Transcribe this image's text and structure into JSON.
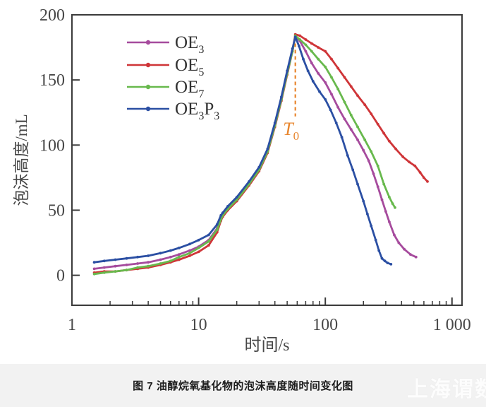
{
  "figure": {
    "caption": "图 7  油醇烷氧基化物的泡沫高度随时间变化图",
    "watermark": "上海谓数"
  },
  "chart_data": {
    "type": "line",
    "x_scale": "log",
    "title": "",
    "xlabel": "时间/s",
    "ylabel": "泡沫高度/mL",
    "xlim": [
      1,
      1200
    ],
    "ylim": [
      -23,
      200
    ],
    "x_ticks": [
      1,
      10,
      100,
      1000
    ],
    "x_tick_labels": [
      "1",
      "10",
      "100",
      "1 000"
    ],
    "y_ticks": [
      0,
      50,
      100,
      150,
      200
    ],
    "grid": false,
    "legend_position": "upper-left-inside",
    "axis_color": "#3b3b3b",
    "tick_label_color": "#474747",
    "annotation": {
      "label": "T",
      "sub": "0",
      "x": 58,
      "line_y_top": 178,
      "line_y_bottom": 122,
      "color": "#e8862e",
      "style": "dashed-vertical"
    },
    "series": [
      {
        "name": "OE3",
        "label_parts": [
          [
            "OE",
            false
          ],
          [
            "3",
            true
          ]
        ],
        "color": "#a64b9d",
        "points": [
          [
            1.5,
            5
          ],
          [
            1.8,
            6
          ],
          [
            2.2,
            7
          ],
          [
            2.7,
            8
          ],
          [
            3.3,
            9
          ],
          [
            4,
            10
          ],
          [
            5,
            12
          ],
          [
            6,
            14
          ],
          [
            7,
            16
          ],
          [
            8.5,
            19
          ],
          [
            10,
            22
          ],
          [
            12,
            27
          ],
          [
            14,
            36
          ],
          [
            15,
            44
          ],
          [
            15.5,
            46
          ],
          [
            17,
            51
          ],
          [
            20,
            58
          ],
          [
            25,
            70
          ],
          [
            30,
            81
          ],
          [
            35,
            95
          ],
          [
            40,
            115
          ],
          [
            45,
            135
          ],
          [
            50,
            155
          ],
          [
            55,
            172
          ],
          [
            58,
            184
          ],
          [
            63,
            180
          ],
          [
            70,
            172
          ],
          [
            78,
            163
          ],
          [
            88,
            155
          ],
          [
            100,
            148
          ],
          [
            112,
            139
          ],
          [
            126,
            129
          ],
          [
            142,
            120
          ],
          [
            160,
            112
          ],
          [
            180,
            104
          ],
          [
            200,
            96
          ],
          [
            220,
            88
          ],
          [
            240,
            78
          ],
          [
            260,
            68
          ],
          [
            280,
            58
          ],
          [
            300,
            49
          ],
          [
            320,
            41
          ],
          [
            350,
            31
          ],
          [
            380,
            25
          ],
          [
            420,
            20
          ],
          [
            470,
            16
          ],
          [
            520,
            14
          ]
        ]
      },
      {
        "name": "OE5",
        "label_parts": [
          [
            "OE",
            false
          ],
          [
            "5",
            true
          ]
        ],
        "color": "#cf3538",
        "points": [
          [
            1.5,
            2
          ],
          [
            1.8,
            3
          ],
          [
            2.2,
            3
          ],
          [
            2.7,
            4
          ],
          [
            3.3,
            5
          ],
          [
            4,
            6
          ],
          [
            5,
            8
          ],
          [
            6,
            10
          ],
          [
            7,
            12
          ],
          [
            8.5,
            15
          ],
          [
            10,
            18
          ],
          [
            12,
            23
          ],
          [
            14,
            33
          ],
          [
            15,
            42
          ],
          [
            15.5,
            45
          ],
          [
            17,
            50
          ],
          [
            20,
            57
          ],
          [
            25,
            69
          ],
          [
            30,
            80
          ],
          [
            35,
            94
          ],
          [
            40,
            114
          ],
          [
            45,
            134
          ],
          [
            50,
            154
          ],
          [
            55,
            172
          ],
          [
            58,
            185
          ],
          [
            63,
            184
          ],
          [
            70,
            181
          ],
          [
            78,
            178
          ],
          [
            88,
            175
          ],
          [
            100,
            172
          ],
          [
            112,
            166
          ],
          [
            126,
            159
          ],
          [
            142,
            152
          ],
          [
            160,
            145
          ],
          [
            180,
            138
          ],
          [
            205,
            131
          ],
          [
            230,
            124
          ],
          [
            260,
            116
          ],
          [
            290,
            109
          ],
          [
            320,
            103
          ],
          [
            360,
            97
          ],
          [
            410,
            91
          ],
          [
            460,
            87
          ],
          [
            510,
            84
          ],
          [
            560,
            79
          ],
          [
            600,
            75
          ],
          [
            640,
            72
          ]
        ]
      },
      {
        "name": "OE7",
        "label_parts": [
          [
            "OE",
            false
          ],
          [
            "7",
            true
          ]
        ],
        "color": "#68b94d",
        "points": [
          [
            1.5,
            1
          ],
          [
            1.8,
            2
          ],
          [
            2.2,
            3
          ],
          [
            2.7,
            4
          ],
          [
            3.3,
            6
          ],
          [
            4,
            7
          ],
          [
            5,
            9
          ],
          [
            6,
            11
          ],
          [
            7,
            14
          ],
          [
            8.5,
            17
          ],
          [
            10,
            21
          ],
          [
            12,
            26
          ],
          [
            14,
            35
          ],
          [
            15,
            43
          ],
          [
            15.5,
            46
          ],
          [
            17,
            51
          ],
          [
            20,
            58
          ],
          [
            25,
            70
          ],
          [
            30,
            81
          ],
          [
            35,
            95
          ],
          [
            40,
            115
          ],
          [
            45,
            135
          ],
          [
            50,
            155
          ],
          [
            55,
            172
          ],
          [
            58,
            184
          ],
          [
            63,
            181
          ],
          [
            70,
            177
          ],
          [
            78,
            172
          ],
          [
            88,
            166
          ],
          [
            100,
            160
          ],
          [
            112,
            152
          ],
          [
            126,
            143
          ],
          [
            142,
            133
          ],
          [
            160,
            123
          ],
          [
            180,
            114
          ],
          [
            205,
            104
          ],
          [
            230,
            95
          ],
          [
            260,
            84
          ],
          [
            290,
            70
          ],
          [
            320,
            60
          ],
          [
            340,
            55
          ],
          [
            355,
            52
          ]
        ]
      },
      {
        "name": "OE3P3",
        "label_parts": [
          [
            "OE",
            false
          ],
          [
            "3",
            true
          ],
          [
            "P",
            false
          ],
          [
            "3",
            true
          ]
        ],
        "color": "#2b4fa3",
        "points": [
          [
            1.5,
            10
          ],
          [
            1.8,
            11
          ],
          [
            2.2,
            12
          ],
          [
            2.7,
            13
          ],
          [
            3.3,
            14
          ],
          [
            4,
            15
          ],
          [
            5,
            17
          ],
          [
            6,
            19
          ],
          [
            7,
            21
          ],
          [
            8.5,
            24
          ],
          [
            10,
            27
          ],
          [
            12,
            31
          ],
          [
            14,
            39
          ],
          [
            15,
            46
          ],
          [
            15.5,
            48
          ],
          [
            17,
            53
          ],
          [
            20,
            60
          ],
          [
            25,
            72
          ],
          [
            30,
            83
          ],
          [
            35,
            97
          ],
          [
            40,
            117
          ],
          [
            45,
            137
          ],
          [
            50,
            157
          ],
          [
            55,
            174
          ],
          [
            58,
            183
          ],
          [
            62,
            176
          ],
          [
            67,
            166
          ],
          [
            73,
            157
          ],
          [
            80,
            149
          ],
          [
            90,
            141
          ],
          [
            100,
            135
          ],
          [
            110,
            127
          ],
          [
            122,
            117
          ],
          [
            135,
            106
          ],
          [
            150,
            92
          ],
          [
            165,
            81
          ],
          [
            180,
            70
          ],
          [
            200,
            57
          ],
          [
            215,
            47
          ],
          [
            230,
            38
          ],
          [
            250,
            27
          ],
          [
            265,
            19
          ],
          [
            280,
            13
          ],
          [
            295,
            11
          ],
          [
            310,
            9.5
          ],
          [
            330,
            8.5
          ]
        ]
      }
    ]
  }
}
